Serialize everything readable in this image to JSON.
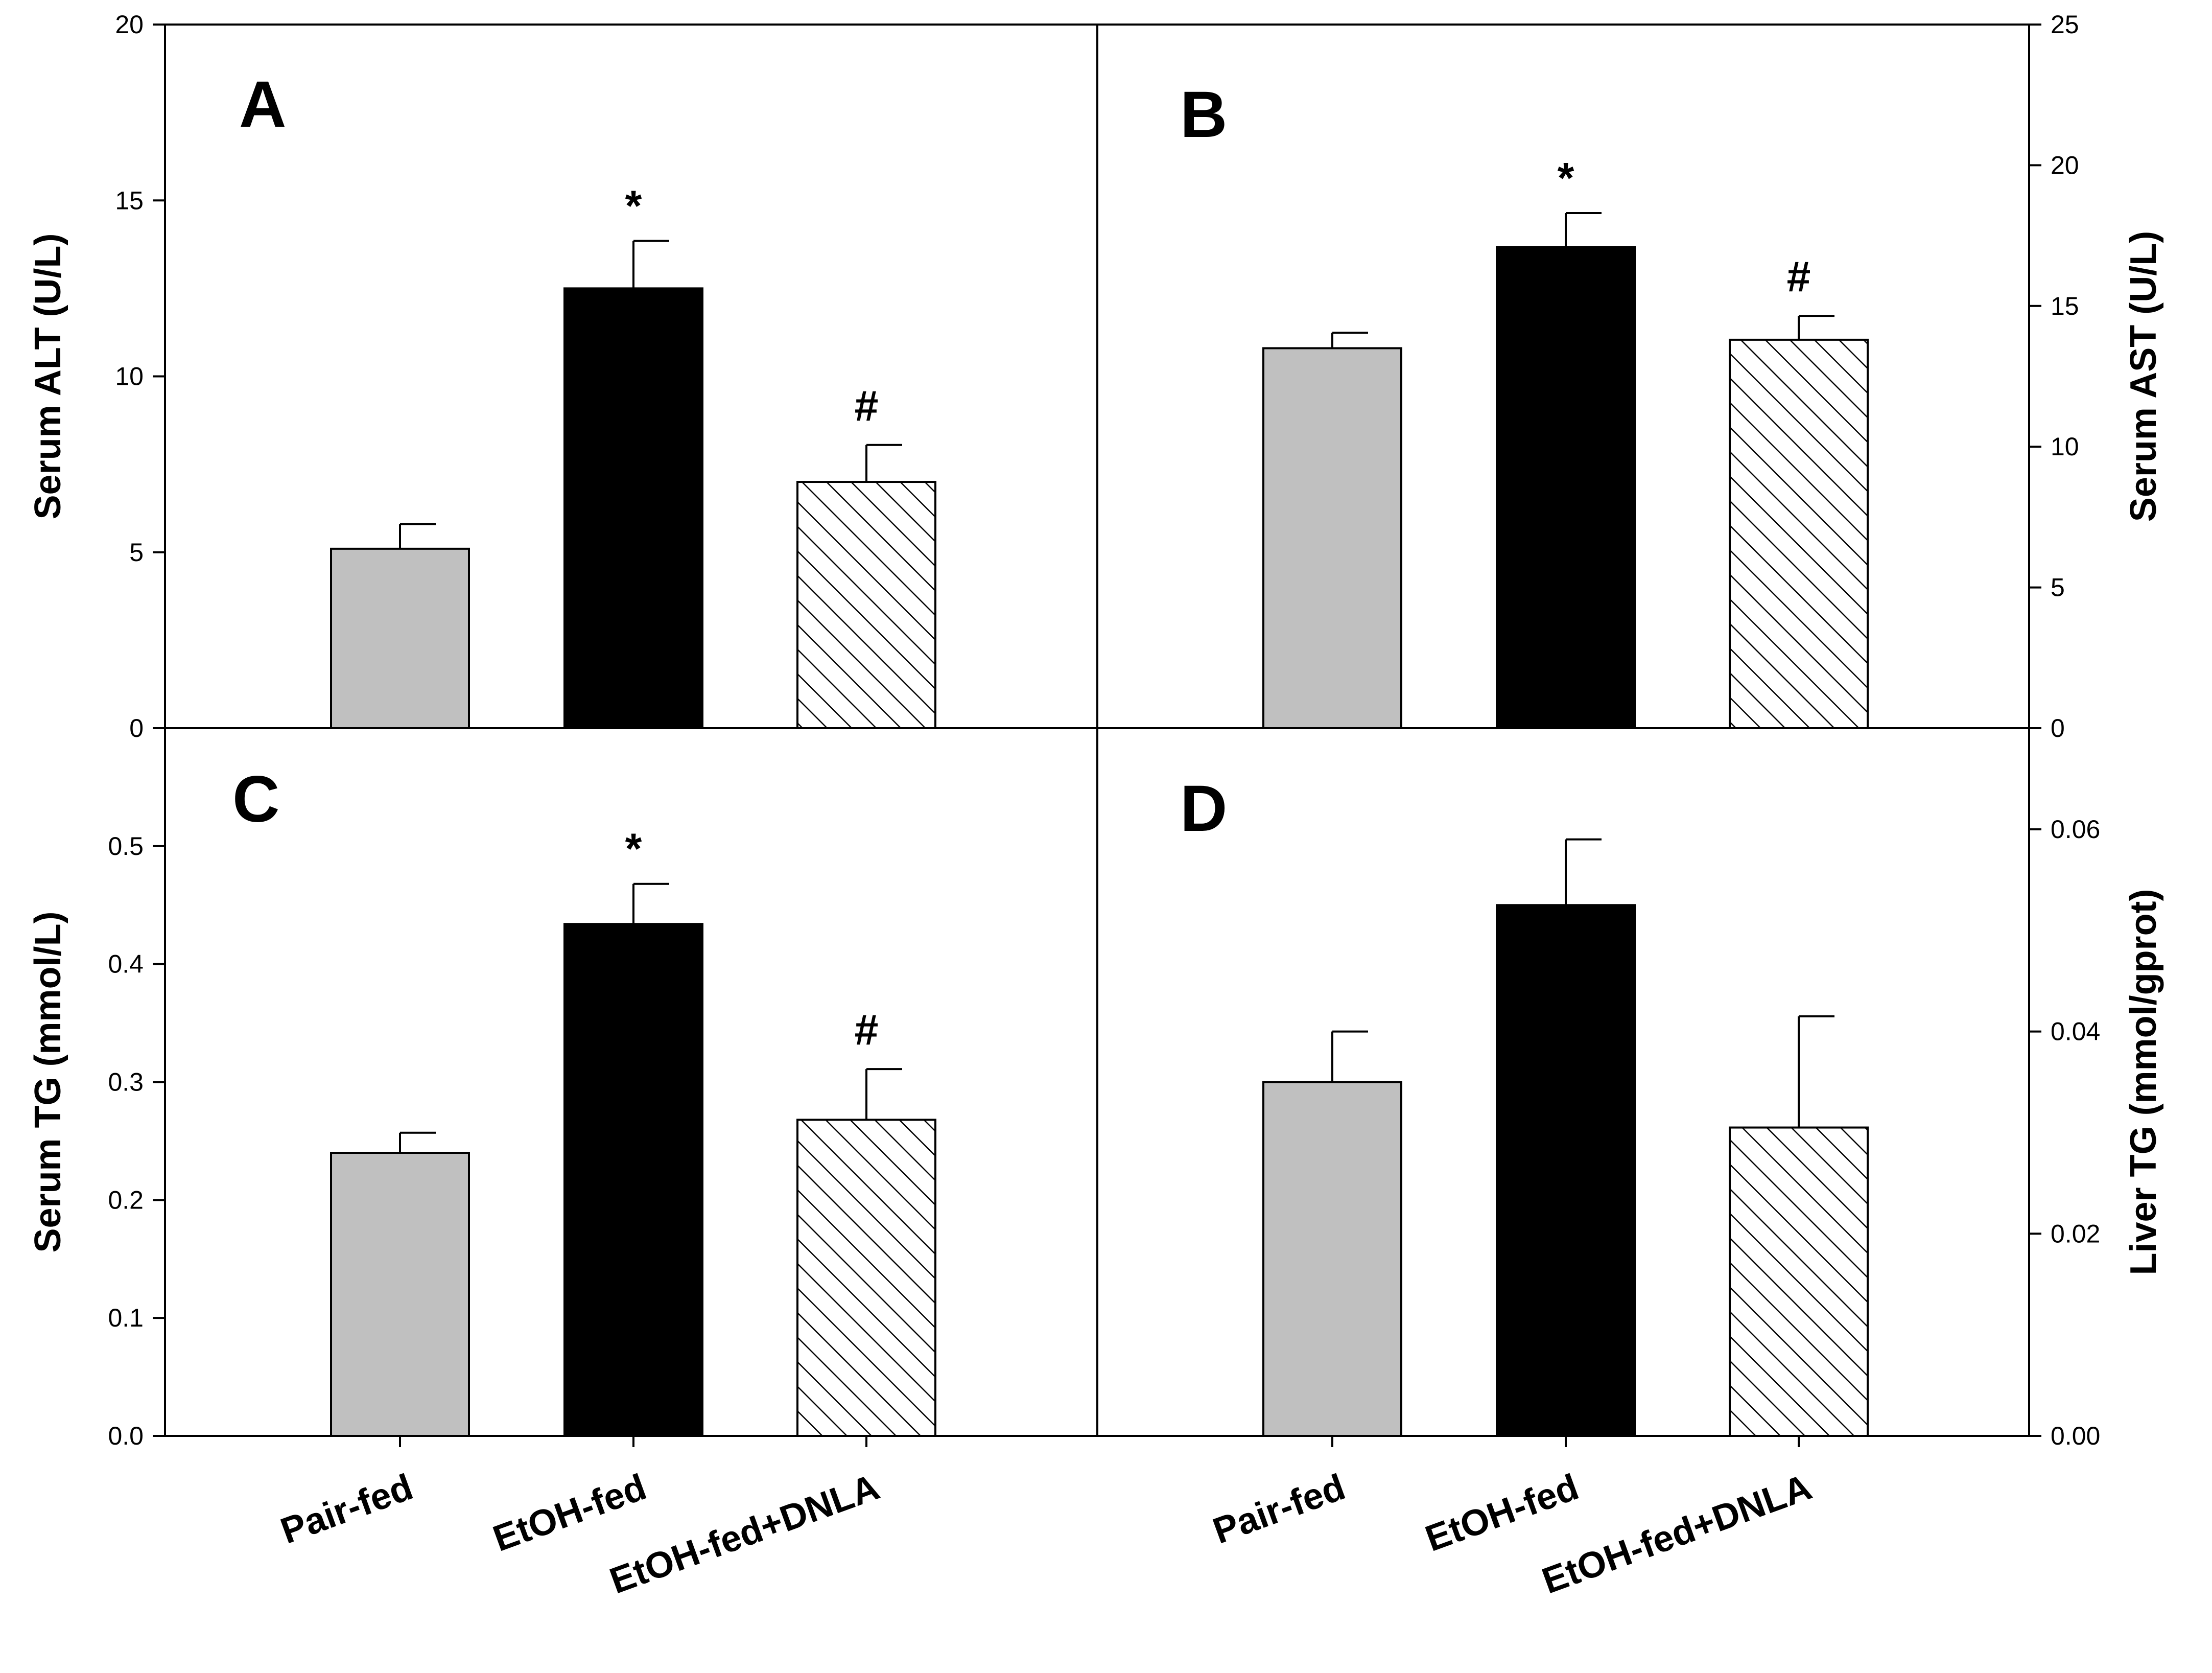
{
  "chart_data": [
    {
      "panel": "A",
      "type": "bar",
      "ylabel": "Serum ALT (U/L)",
      "ylim": [
        0,
        20
      ],
      "yticks": [
        0,
        5,
        10,
        15,
        20
      ],
      "ytick_labels": [
        "0",
        "5",
        "10",
        "15",
        "20"
      ],
      "categories": [
        "Pair-fed",
        "EtOH-fed",
        "EtOH-fed+DNLA"
      ],
      "values": [
        5.1,
        12.5,
        7.0
      ],
      "errors": [
        0.7,
        1.35,
        1.05
      ],
      "annotations": [
        "",
        "*",
        "#"
      ]
    },
    {
      "panel": "B",
      "type": "bar",
      "ylabel": "Serum AST (U/L)",
      "ylim": [
        0,
        25
      ],
      "yticks": [
        0,
        5,
        10,
        15,
        20,
        25
      ],
      "ytick_labels": [
        "0",
        "5",
        "10",
        "15",
        "20",
        "25"
      ],
      "categories": [
        "Pair-fed",
        "EtOH-fed",
        "EtOH-fed+DNLA"
      ],
      "values": [
        13.5,
        17.1,
        13.8
      ],
      "errors": [
        0.55,
        1.2,
        0.85
      ],
      "annotations": [
        "",
        "*",
        "#"
      ]
    },
    {
      "panel": "C",
      "type": "bar",
      "ylabel": "Serum TG (mmol/L)",
      "ylim": [
        0,
        0.6
      ],
      "yticks": [
        0,
        0.1,
        0.2,
        0.3,
        0.4,
        0.5
      ],
      "ytick_labels": [
        "0.0",
        "0.1",
        "0.2",
        "0.3",
        "0.4",
        "0.5"
      ],
      "categories": [
        "Pair-fed",
        "EtOH-fed",
        "EtOH-fed+DNLA"
      ],
      "values": [
        0.24,
        0.434,
        0.268
      ],
      "errors": [
        0.017,
        0.034,
        0.043
      ],
      "annotations": [
        "",
        "*",
        "#"
      ]
    },
    {
      "panel": "D",
      "type": "bar",
      "ylabel": "Liver TG (mmol/gprot)",
      "ylim": [
        0,
        0.07
      ],
      "yticks": [
        0,
        0.02,
        0.04,
        0.06
      ],
      "ytick_labels": [
        "0.00",
        "0.02",
        "0.04",
        "0.06"
      ],
      "categories": [
        "Pair-fed",
        "EtOH-fed",
        "EtOH-fed+DNLA"
      ],
      "values": [
        0.035,
        0.0525,
        0.0305
      ],
      "errors": [
        0.005,
        0.0065,
        0.011
      ],
      "annotations": [
        "",
        "",
        ""
      ]
    }
  ],
  "series_colors": [
    "#c0c0c0",
    "#000000",
    "hatched"
  ]
}
